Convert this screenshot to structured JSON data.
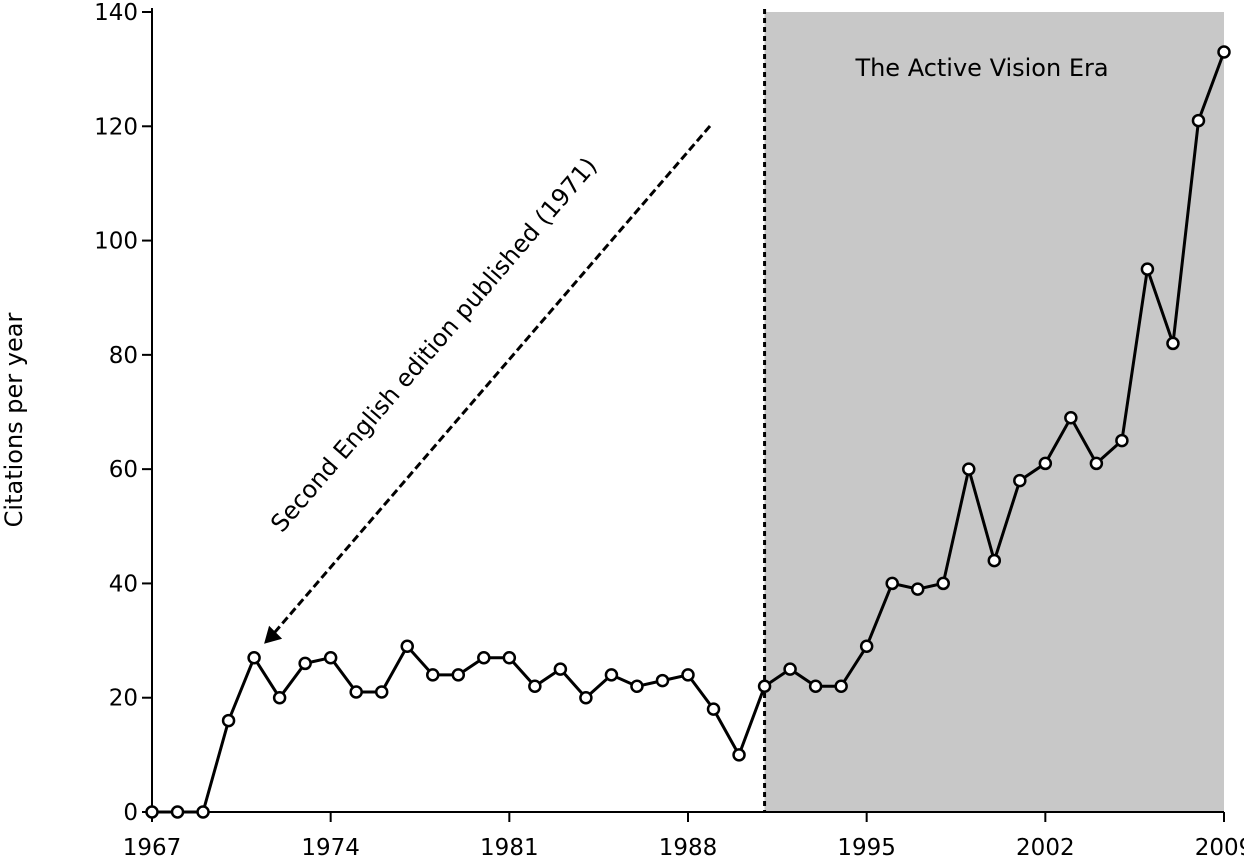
{
  "chart_data": {
    "type": "line",
    "title": "",
    "xlabel": "",
    "ylabel": "Citations per year",
    "xlim": [
      1967,
      2009
    ],
    "ylim": [
      0,
      140
    ],
    "x_ticks": [
      1967,
      1974,
      1981,
      1988,
      1995,
      2002,
      2009
    ],
    "x_tick_labels": [
      "1967",
      "1974",
      "1981",
      "1988",
      "1995",
      "2002",
      "2009"
    ],
    "y_ticks": [
      0,
      20,
      40,
      60,
      80,
      100,
      120,
      140
    ],
    "y_tick_labels": [
      "0",
      "20",
      "40",
      "60",
      "80",
      "100",
      "120",
      "140"
    ],
    "grid": false,
    "legend": "none",
    "series": [
      {
        "x": [
          1967,
          1968,
          1969,
          1970,
          1971,
          1972,
          1973,
          1974,
          1975,
          1976,
          1977,
          1978,
          1979,
          1980,
          1981,
          1982,
          1983,
          1984,
          1985,
          1986,
          1987,
          1988,
          1989,
          1990,
          1991,
          1992,
          1993,
          1994,
          1995,
          1996,
          1997,
          1998,
          1999,
          2000,
          2001,
          2002,
          2003,
          2004,
          2005,
          2006,
          2007,
          2008,
          2009
        ],
        "values": [
          0,
          0,
          0,
          16,
          27,
          20,
          26,
          27,
          21,
          21,
          29,
          24,
          24,
          27,
          27,
          22,
          25,
          20,
          24,
          22,
          23,
          24,
          18,
          10,
          22,
          25,
          22,
          22,
          29,
          40,
          39,
          40,
          60,
          44,
          58,
          61,
          69,
          61,
          65,
          95,
          82,
          121,
          133
        ]
      }
    ],
    "shaded_region": {
      "x_start": 1991,
      "x_end": 2009,
      "color": "#c8c8c8",
      "label": "The Active Vision Era"
    },
    "vertical_line": {
      "x": 1991,
      "style": "dashed"
    },
    "annotations": [
      {
        "text": "Second English edition published (1971)",
        "points_to": {
          "x": 1971,
          "y": 27
        }
      }
    ],
    "colors": {
      "line": "#000000",
      "marker_fill": "#ffffff",
      "shading": "#c8c8c8"
    }
  }
}
